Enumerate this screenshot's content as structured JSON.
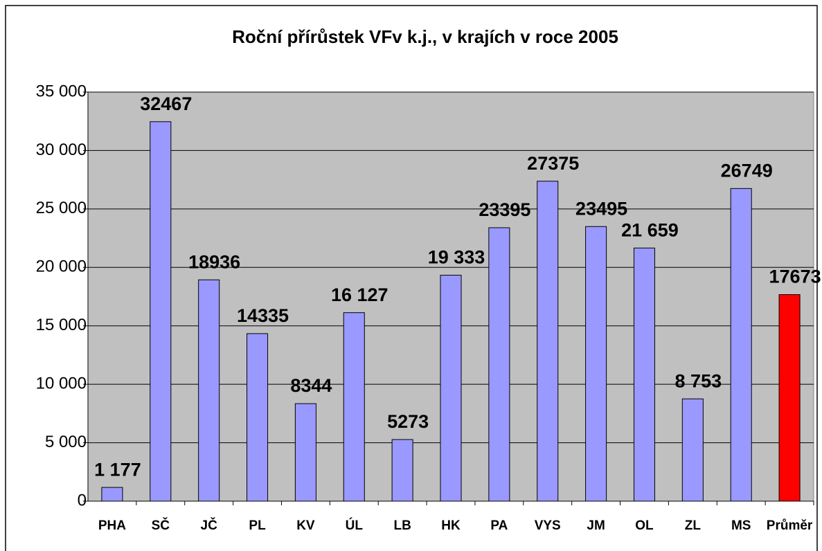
{
  "chart_data": {
    "type": "bar",
    "title": "Roční přírůstek VFv  k.j.,  v krajích  v roce 2005",
    "categories": [
      "PHA",
      "SČ",
      "JČ",
      "PL",
      "KV",
      "ÚL",
      "LB",
      "HK",
      "PA",
      "VYS",
      "JM",
      "OL",
      "ZL",
      "MS",
      "Průměr"
    ],
    "values": [
      1177,
      32467,
      18936,
      14335,
      8344,
      16127,
      5273,
      19333,
      23395,
      27375,
      23495,
      21659,
      8753,
      26749,
      17673
    ],
    "value_labels": [
      "1 177",
      "32467",
      "18936",
      "14335",
      "8344",
      "16 127",
      "5273",
      "19 333",
      "23395",
      "27375",
      "23495",
      "21 659",
      "8 753",
      "26749",
      "17673"
    ],
    "colors": [
      "#9999ff",
      "#9999ff",
      "#9999ff",
      "#9999ff",
      "#9999ff",
      "#9999ff",
      "#9999ff",
      "#9999ff",
      "#9999ff",
      "#9999ff",
      "#9999ff",
      "#9999ff",
      "#9999ff",
      "#9999ff",
      "#ff0000"
    ],
    "ylim": [
      0,
      35000
    ],
    "yticks": [
      0,
      {
        "value": 5000,
        "label": "5 000"
      },
      {
        "value": 10000,
        "label": "10 000"
      },
      {
        "value": 15000,
        "label": "15 000"
      },
      {
        "value": 20000,
        "label": "20 000"
      },
      {
        "value": 25000,
        "label": "25 000"
      },
      {
        "value": 30000,
        "label": "30 000"
      },
      {
        "value": 35000,
        "label": "35 000"
      }
    ],
    "grid": true
  }
}
